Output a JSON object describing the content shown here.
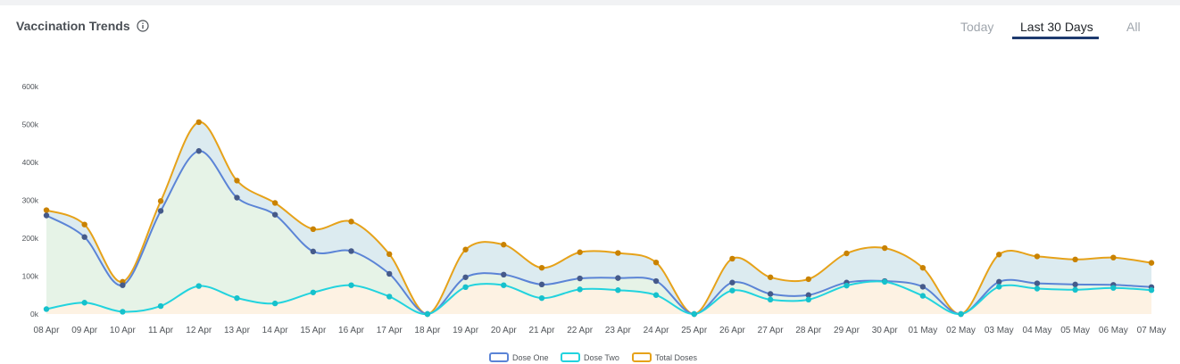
{
  "header": {
    "title": "Vaccination Trends",
    "info_icon": "info-circle-icon"
  },
  "tabs": [
    {
      "label": "Today",
      "active": false
    },
    {
      "label": "Last 30 Days",
      "active": true
    },
    {
      "label": "All",
      "active": false
    }
  ],
  "colors": {
    "dose_one": "#5b84d6",
    "dose_two": "#22d3de",
    "total": "#e6a21a",
    "total_marker": "#c98200",
    "dose_one_marker": "#455a8a",
    "dose_two_marker": "#16c1cc",
    "fill_dose_one": "#e6f3e7",
    "fill_dose_two": "#fdf2e3",
    "fill_total": "#dcebf0"
  },
  "chart_data": {
    "type": "area",
    "categories": [
      "08 Apr",
      "09 Apr",
      "10 Apr",
      "11 Apr",
      "12 Apr",
      "13 Apr",
      "14 Apr",
      "15 Apr",
      "16 Apr",
      "17 Apr",
      "18 Apr",
      "19 Apr",
      "20 Apr",
      "21 Apr",
      "22 Apr",
      "23 Apr",
      "24 Apr",
      "25 Apr",
      "26 Apr",
      "27 Apr",
      "28 Apr",
      "29 Apr",
      "30 Apr",
      "01 May",
      "02 May",
      "03 May",
      "04 May",
      "05 May",
      "06 May",
      "07 May"
    ],
    "yticks": [
      "0k",
      "100k",
      "200k",
      "300k",
      "400k",
      "500k",
      "600k"
    ],
    "ylim": [
      0,
      600000
    ],
    "legend_position": "bottom-center",
    "series": [
      {
        "name": "Dose One",
        "values": [
          260000,
          203000,
          76000,
          272000,
          430000,
          307000,
          262000,
          165000,
          166000,
          106000,
          0,
          97000,
          104000,
          78000,
          94000,
          95000,
          87000,
          0,
          83000,
          53000,
          50000,
          83000,
          87000,
          72000,
          0,
          85000,
          81000,
          78000,
          77000,
          71000
        ]
      },
      {
        "name": "Dose Two",
        "values": [
          13000,
          30000,
          6000,
          21000,
          74000,
          42000,
          28000,
          57000,
          76000,
          46000,
          0,
          71000,
          76000,
          42000,
          65000,
          63000,
          50000,
          0,
          62000,
          38000,
          38000,
          75000,
          85000,
          48000,
          0,
          72000,
          67000,
          64000,
          69000,
          63000
        ]
      },
      {
        "name": "Total Doses",
        "values": [
          274000,
          236000,
          85000,
          298000,
          506000,
          352000,
          293000,
          224000,
          244000,
          158000,
          0,
          170000,
          183000,
          122000,
          163000,
          161000,
          136000,
          0,
          146000,
          97000,
          92000,
          160000,
          174000,
          122000,
          0,
          157000,
          152000,
          144000,
          149000,
          135000
        ]
      }
    ]
  }
}
